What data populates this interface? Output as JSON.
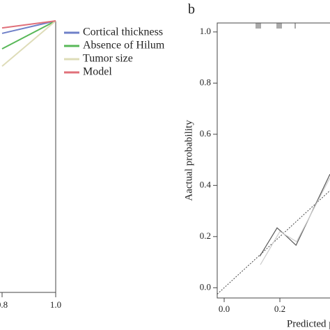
{
  "chart_data": [
    {
      "type": "line",
      "x": [
        0.8,
        1.0
      ],
      "series": [
        {
          "name": "Cortical thickness",
          "color": "#6f80c8",
          "values": [
            0.954,
            1.0
          ]
        },
        {
          "name": "Absence of Hilum",
          "color": "#58b858",
          "values": [
            0.897,
            1.0
          ]
        },
        {
          "name": "Tumor size",
          "color": "#dedcb8",
          "values": [
            0.833,
            1.0
          ]
        },
        {
          "name": "Model",
          "color": "#e0707a",
          "values": [
            0.974,
            1.0
          ]
        }
      ],
      "xlim": [
        0,
        1
      ],
      "ylim": [
        0,
        1
      ],
      "xticks": [
        {
          "value": 0.8,
          "label": "0.8"
        },
        {
          "value": 1,
          "label": "1.0"
        }
      ],
      "legend": "right"
    },
    {
      "type": "calibration",
      "label": "b",
      "xlabel": "Predicted probability",
      "ylabel": "Aactual probability",
      "xlim": [
        -0.025,
        1.04
      ],
      "ylim": [
        -0.04,
        1.035
      ],
      "xticks": [
        {
          "value": 0,
          "label": "0.0"
        },
        {
          "value": 0.2,
          "label": "0.2"
        }
      ],
      "yticks": [
        {
          "value": 0,
          "label": "0.0"
        },
        {
          "value": 0.2,
          "label": "0.2"
        },
        {
          "value": 0.4,
          "label": "0.4"
        },
        {
          "value": 0.6,
          "label": "0.6"
        },
        {
          "value": 0.8,
          "label": "0.8"
        },
        {
          "value": 1,
          "label": "1.0"
        }
      ],
      "series": [
        {
          "color": "#555555",
          "x": [
            0.128,
            0.19,
            0.225,
            0.258,
            0.38
          ],
          "values": [
            0.123,
            0.234,
            0.2,
            0.166,
            0.444
          ]
        },
        {
          "color": "#cccccc",
          "x": [
            0.13,
            0.2,
            0.26,
            0.38
          ],
          "values": [
            0.09,
            0.22,
            0.18,
            0.43
          ]
        }
      ],
      "rug": [
        0.115,
        0.12,
        0.125,
        0.13,
        0.19,
        0.195,
        0.2,
        0.205,
        0.255
      ]
    }
  ]
}
